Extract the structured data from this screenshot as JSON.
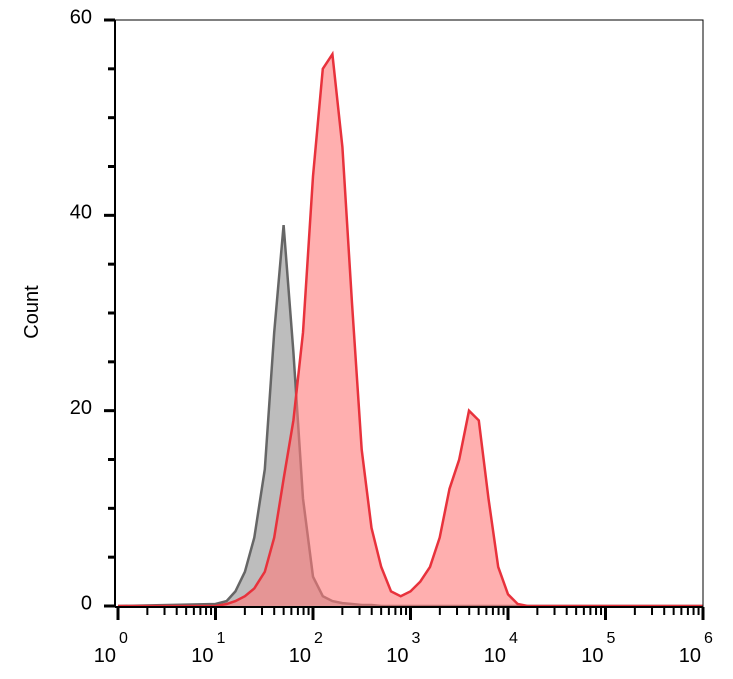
{
  "chart_data": {
    "type": "histogram-overlay",
    "y_label": "Count",
    "xscale": "log",
    "xlim": [
      1,
      1000000
    ],
    "ylim": [
      0,
      60
    ],
    "yticks": [
      0,
      20,
      40,
      60
    ],
    "yminorticks": [
      5,
      10,
      15,
      25,
      30,
      35,
      45,
      50,
      55
    ],
    "xticks": [
      {
        "value": 1,
        "label": "10",
        "exponent": "0"
      },
      {
        "value": 10,
        "label": "10",
        "exponent": "1"
      },
      {
        "value": 100,
        "label": "10",
        "exponent": "2"
      },
      {
        "value": 1000,
        "label": "10",
        "exponent": "3"
      },
      {
        "value": 10000,
        "label": "10",
        "exponent": "4"
      },
      {
        "value": 100000,
        "label": "10",
        "exponent": "5"
      },
      {
        "value": 1000000,
        "label": "10",
        "exponent": "6"
      }
    ],
    "xminorticks": [
      2,
      3,
      4,
      5,
      6,
      7,
      8,
      9,
      20,
      30,
      40,
      50,
      60,
      70,
      80,
      90,
      200,
      300,
      400,
      500,
      600,
      700,
      800,
      900,
      2000,
      3000,
      4000,
      5000,
      6000,
      7000,
      8000,
      9000,
      20000,
      30000,
      40000,
      50000,
      60000,
      70000,
      80000,
      90000,
      200000,
      300000,
      400000,
      500000,
      600000,
      700000,
      800000,
      900000
    ],
    "x": [
      1,
      10,
      13,
      16,
      20,
      25,
      32,
      40,
      50,
      63,
      79,
      100,
      126,
      158,
      200,
      251,
      316,
      398,
      501,
      631,
      794,
      1000,
      1259,
      1585,
      1995,
      2512,
      3162,
      3981,
      5012,
      6310,
      7943,
      10000,
      12589,
      15849,
      1000000
    ],
    "series": [
      {
        "color": "#666666",
        "fill": "#bdbdbd",
        "values": [
          0,
          0.2,
          0.5,
          1.5,
          3.5,
          7,
          14,
          28,
          39,
          26,
          11,
          3,
          1,
          0.5,
          0.3,
          0.2,
          0.1,
          0.1,
          0,
          0,
          0,
          0,
          0,
          0,
          0,
          0,
          0,
          0,
          0,
          0,
          0,
          0,
          0,
          0,
          0
        ]
      },
      {
        "color": "#e8323c",
        "fill": "#ff7a7a",
        "values": [
          0,
          0,
          0.2,
          0.5,
          1,
          1.8,
          3.5,
          7,
          13,
          19,
          28,
          44,
          55,
          56.5,
          47,
          31,
          16,
          8,
          4,
          1.5,
          1,
          1.5,
          2.5,
          4,
          7,
          12,
          15,
          20,
          19,
          11,
          4,
          1.2,
          0.2,
          0,
          0
        ]
      }
    ]
  }
}
